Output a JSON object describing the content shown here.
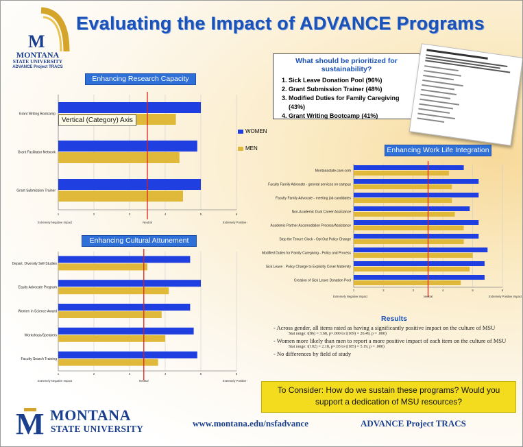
{
  "header": {
    "title": "Evaluating the Impact of ADVANCE Programs",
    "logo_line1": "MONTANA",
    "logo_line2": "STATE UNIVERSITY",
    "logo_line3": "ADVANCE Project TRACS"
  },
  "priorities": {
    "heading": "What should be prioritized for sustainability?",
    "items": [
      "Sick Leave Donation Pool (96%)",
      "Grant Submission Trainer (48%)",
      "Modified Duties for Family Caregiving (43%)",
      "Grant Writing Bootcamp (41%)"
    ]
  },
  "tooltip": "Vertical (Category) Axis",
  "legend": {
    "women": "WOMEN",
    "men": "MEN",
    "women_color": "#1f3fe0",
    "men_color": "#e0b93a"
  },
  "chart_data": [
    {
      "type": "bar",
      "orientation": "horizontal",
      "title": "Enhancing Research Capacity",
      "categories": [
        "Grant Writing Bootcamp",
        "Grant Facilitator Network",
        "Grant Submission Trainer"
      ],
      "series": [
        {
          "name": "WOMEN",
          "values": [
            5.0,
            4.9,
            5.0
          ]
        },
        {
          "name": "MEN",
          "values": [
            4.3,
            4.4,
            4.5
          ]
        }
      ],
      "xlim": [
        1,
        6
      ],
      "xticks": [
        "1",
        "2",
        "3",
        "4",
        "5",
        "6"
      ],
      "neutral_value": 3.5,
      "scale_labels": {
        "low": "Extremely Negative Impact",
        "mid": "Neutral",
        "high": "Extremely Positive Impact"
      }
    },
    {
      "type": "bar",
      "orientation": "horizontal",
      "title": "Enhancing Cultural Attunement",
      "categories": [
        "Depart. Diversity Self-Studies",
        "Equity Advocate Program",
        "Women in Science Award",
        "Workshops/Speakers",
        "Faculty Search Training"
      ],
      "series": [
        {
          "name": "WOMEN",
          "values": [
            4.7,
            5.0,
            4.7,
            4.8,
            4.9
          ]
        },
        {
          "name": "MEN",
          "values": [
            3.5,
            4.1,
            3.9,
            4.0,
            3.8
          ]
        }
      ],
      "xlim": [
        1,
        6
      ],
      "xticks": [
        "1",
        "2",
        "3",
        "4",
        "5",
        "6"
      ],
      "neutral_value": 3.4,
      "scale_labels": {
        "low": "Extremely Negative Impact",
        "mid": "Neutral",
        "high": "Extremely Positive Impact"
      }
    },
    {
      "type": "bar",
      "orientation": "horizontal",
      "title": "Enhancing Work Life Integration",
      "categories": [
        "Montanastate.care.com",
        "Faculty Family Advocate - general services on campus",
        "Faculty Family Advocate - meeting job candidates",
        "Non-Academic Dual Career Assistance",
        "Academic Partner Accomodation Process/Assistance",
        "Stop the Tenure Clock - Opt Out Policy Change",
        "Modified Duties for Family Caregiving - Policy and Process",
        "Sick Leave - Policy Change to Explicitly Cover Maternity",
        "Creation of Sick Leave Donation Pool"
      ],
      "series": [
        {
          "name": "WOMEN",
          "values": [
            4.7,
            5.2,
            5.2,
            4.9,
            5.2,
            5.2,
            5.5,
            5.4,
            5.4
          ]
        },
        {
          "name": "MEN",
          "values": [
            4.2,
            4.3,
            4.3,
            4.4,
            4.7,
            4.7,
            5.0,
            4.9,
            4.6
          ]
        }
      ],
      "xlim": [
        1,
        6
      ],
      "xticks": [
        "1",
        "2",
        "3",
        "4",
        "5",
        "6"
      ],
      "neutral_value": 3.5,
      "scale_labels": {
        "low": "Extremely Negative Impact",
        "mid": "Neutral",
        "high": "Extremely Positive Impact"
      }
    }
  ],
  "results": {
    "heading": "Results",
    "b1": "- Across gender, all items rated as having a significantly positive impact on the culture of MSU",
    "s1": "Stat range: t(86) = 3.68, p=.000 to t(169) = 26.49, p = .000)",
    "b2": "- Women more likely than men to report a more positive impact of each item on the culture of MSU",
    "s2": "Stat range: t(102) = 2.18, p=.03 to t(185) = 5.19, p = .000)",
    "b3": "- No differences by field of study"
  },
  "consider": "To Consider: How do we sustain these programs? Would you support a dedication of MSU resources?",
  "footer": {
    "name1": "MONTANA",
    "name2": "STATE UNIVERSITY",
    "url": "www.montana.edu/nsfadvance",
    "project": "ADVANCE Project TRACS"
  }
}
